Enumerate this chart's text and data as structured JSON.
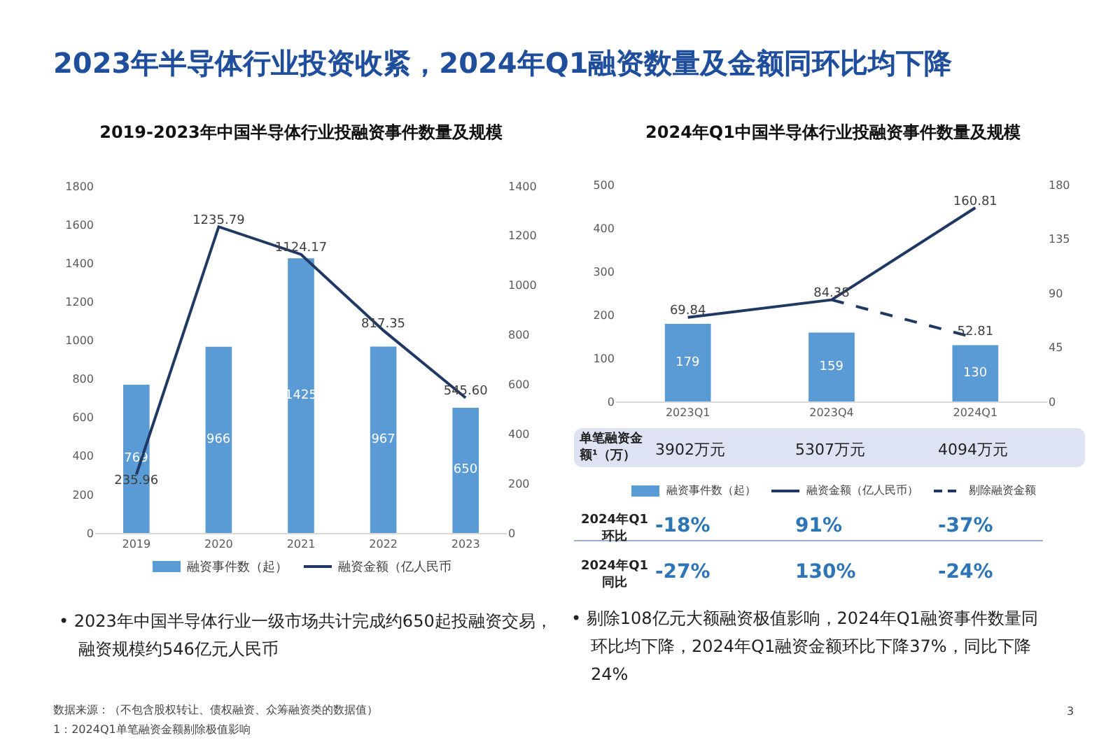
{
  "chart_data": [
    {
      "type": "bar",
      "title": "2019-2023年中国半导体行业投融资事件数量及规模",
      "categories": [
        "2019",
        "2020",
        "2021",
        "2022",
        "2023"
      ],
      "series": [
        {
          "name": "融资事件数（起）",
          "color": "#5b9bd5",
          "values": [
            769,
            966,
            1425,
            967,
            650
          ],
          "value_labels": [
            "769",
            "966",
            "1425",
            "967",
            "650"
          ]
        },
        {
          "name": "融资金额（亿人民币",
          "type": "line",
          "axis": "y2",
          "color": "#203864",
          "line_style": "solid",
          "values": [
            235.96,
            1235.79,
            1124.17,
            817.35,
            545.6
          ],
          "value_labels": [
            "235.96",
            "1235.79",
            "1124.17",
            "817.35",
            "545.60"
          ]
        }
      ],
      "ylim": [
        0,
        1800
      ],
      "yticks": [
        0,
        200,
        400,
        600,
        800,
        1000,
        1200,
        1400,
        1600,
        1800
      ],
      "y2lim": [
        0,
        1400
      ],
      "y2ticks": [
        0,
        200,
        400,
        600,
        800,
        1000,
        1200,
        1400
      ],
      "grid": false,
      "legend": "bottom",
      "annotations": [
        "2023年半导体行业投资收紧，2024年Q1融资数量及金额同环比均下降",
        "• 2023年中国半导体行业一级市场共计完成约650起投融资交易，融资规模约546亿元人民币",
        "数据来源：（不包含股权转让、债权融资、众筹融资类的数据值）",
        "1：2024Q1单笔融资金额剔除极值影响",
        "3"
      ]
    },
    {
      "type": "bar",
      "title": "2024年Q1中国半导体行业投融资事件数量及规模",
      "categories": [
        "2023Q1",
        "2023Q4",
        "2024Q1"
      ],
      "series": [
        {
          "name": "融资事件数（起）",
          "color": "#5b9bd5",
          "values": [
            179,
            159,
            130
          ],
          "value_labels": [
            "179",
            "159",
            "130"
          ]
        },
        {
          "name": "融资金额（亿人民币）",
          "type": "line",
          "axis": "y2",
          "color": "#203864",
          "line_style": "solid",
          "values": [
            69.84,
            84.38,
            160.81
          ],
          "value_labels": [
            "69.84",
            "84.38",
            "160.81"
          ]
        },
        {
          "name": "剔除融资金额",
          "type": "line",
          "axis": "y2",
          "color": "#203864",
          "line_style": "dashed",
          "values": [
            null,
            84.38,
            52.81
          ],
          "value_labels": [
            null,
            null,
            "52.81"
          ]
        }
      ],
      "ylim": [
        0,
        500
      ],
      "yticks": [
        0,
        100,
        200,
        300,
        400,
        500
      ],
      "y2lim": [
        0,
        180
      ],
      "y2ticks": [
        0,
        45,
        90,
        135,
        180
      ],
      "grid": false,
      "legend": "bottom",
      "annotations": [
        "单笔融资金额¹（万）",
        "3902万元",
        "5307万元",
        "4094万元",
        "2024年Q1环比",
        "-18%",
        "91%",
        "-37%",
        "2024年Q1同比",
        "-27%",
        "130%",
        "-24%",
        "• 剔除108亿元大额融资极值影响，2024年Q1融资事件数量同环比均下降，2024年Q1融资金额环比下降37%，同比下降24%"
      ]
    }
  ]
}
